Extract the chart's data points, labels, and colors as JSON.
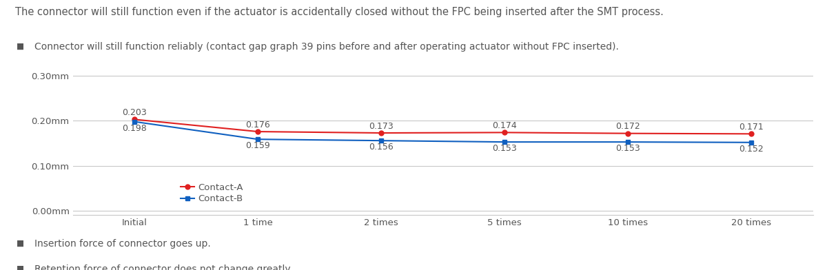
{
  "title_text": "The connector will still function even if the actuator is accidentally closed without the FPC being inserted after the SMT process.",
  "bullet1": "Connector will still function reliably (contact gap graph 39 pins before and after operating actuator without FPC inserted).",
  "bullet2": "Insertion force of connector goes up.",
  "bullet3": "Retention force of connector does not change greatly.",
  "x_labels": [
    "Initial",
    "1 time",
    "2 times",
    "5 times",
    "10 times",
    "20 times"
  ],
  "contact_a": [
    0.203,
    0.176,
    0.173,
    0.174,
    0.172,
    0.171
  ],
  "contact_b": [
    0.198,
    0.159,
    0.156,
    0.153,
    0.153,
    0.152
  ],
  "contact_a_color": "#e02020",
  "contact_b_color": "#1060c0",
  "y_ticks": [
    0.0,
    0.1,
    0.2,
    0.3
  ],
  "y_tick_labels": [
    "0.00mm",
    "0.10mm",
    "0.20mm",
    "0.30mm"
  ],
  "ylim": [
    -0.008,
    0.318
  ],
  "bg_color": "#ffffff",
  "grid_color": "#c8c8c8",
  "text_color": "#555555",
  "font_size_title": 10.5,
  "font_size_bullet": 10.0,
  "font_size_axis": 9.5,
  "font_size_data": 9.0,
  "legend_a": "Contact-A",
  "legend_b": "Contact-B",
  "bullet_color": "#555555"
}
